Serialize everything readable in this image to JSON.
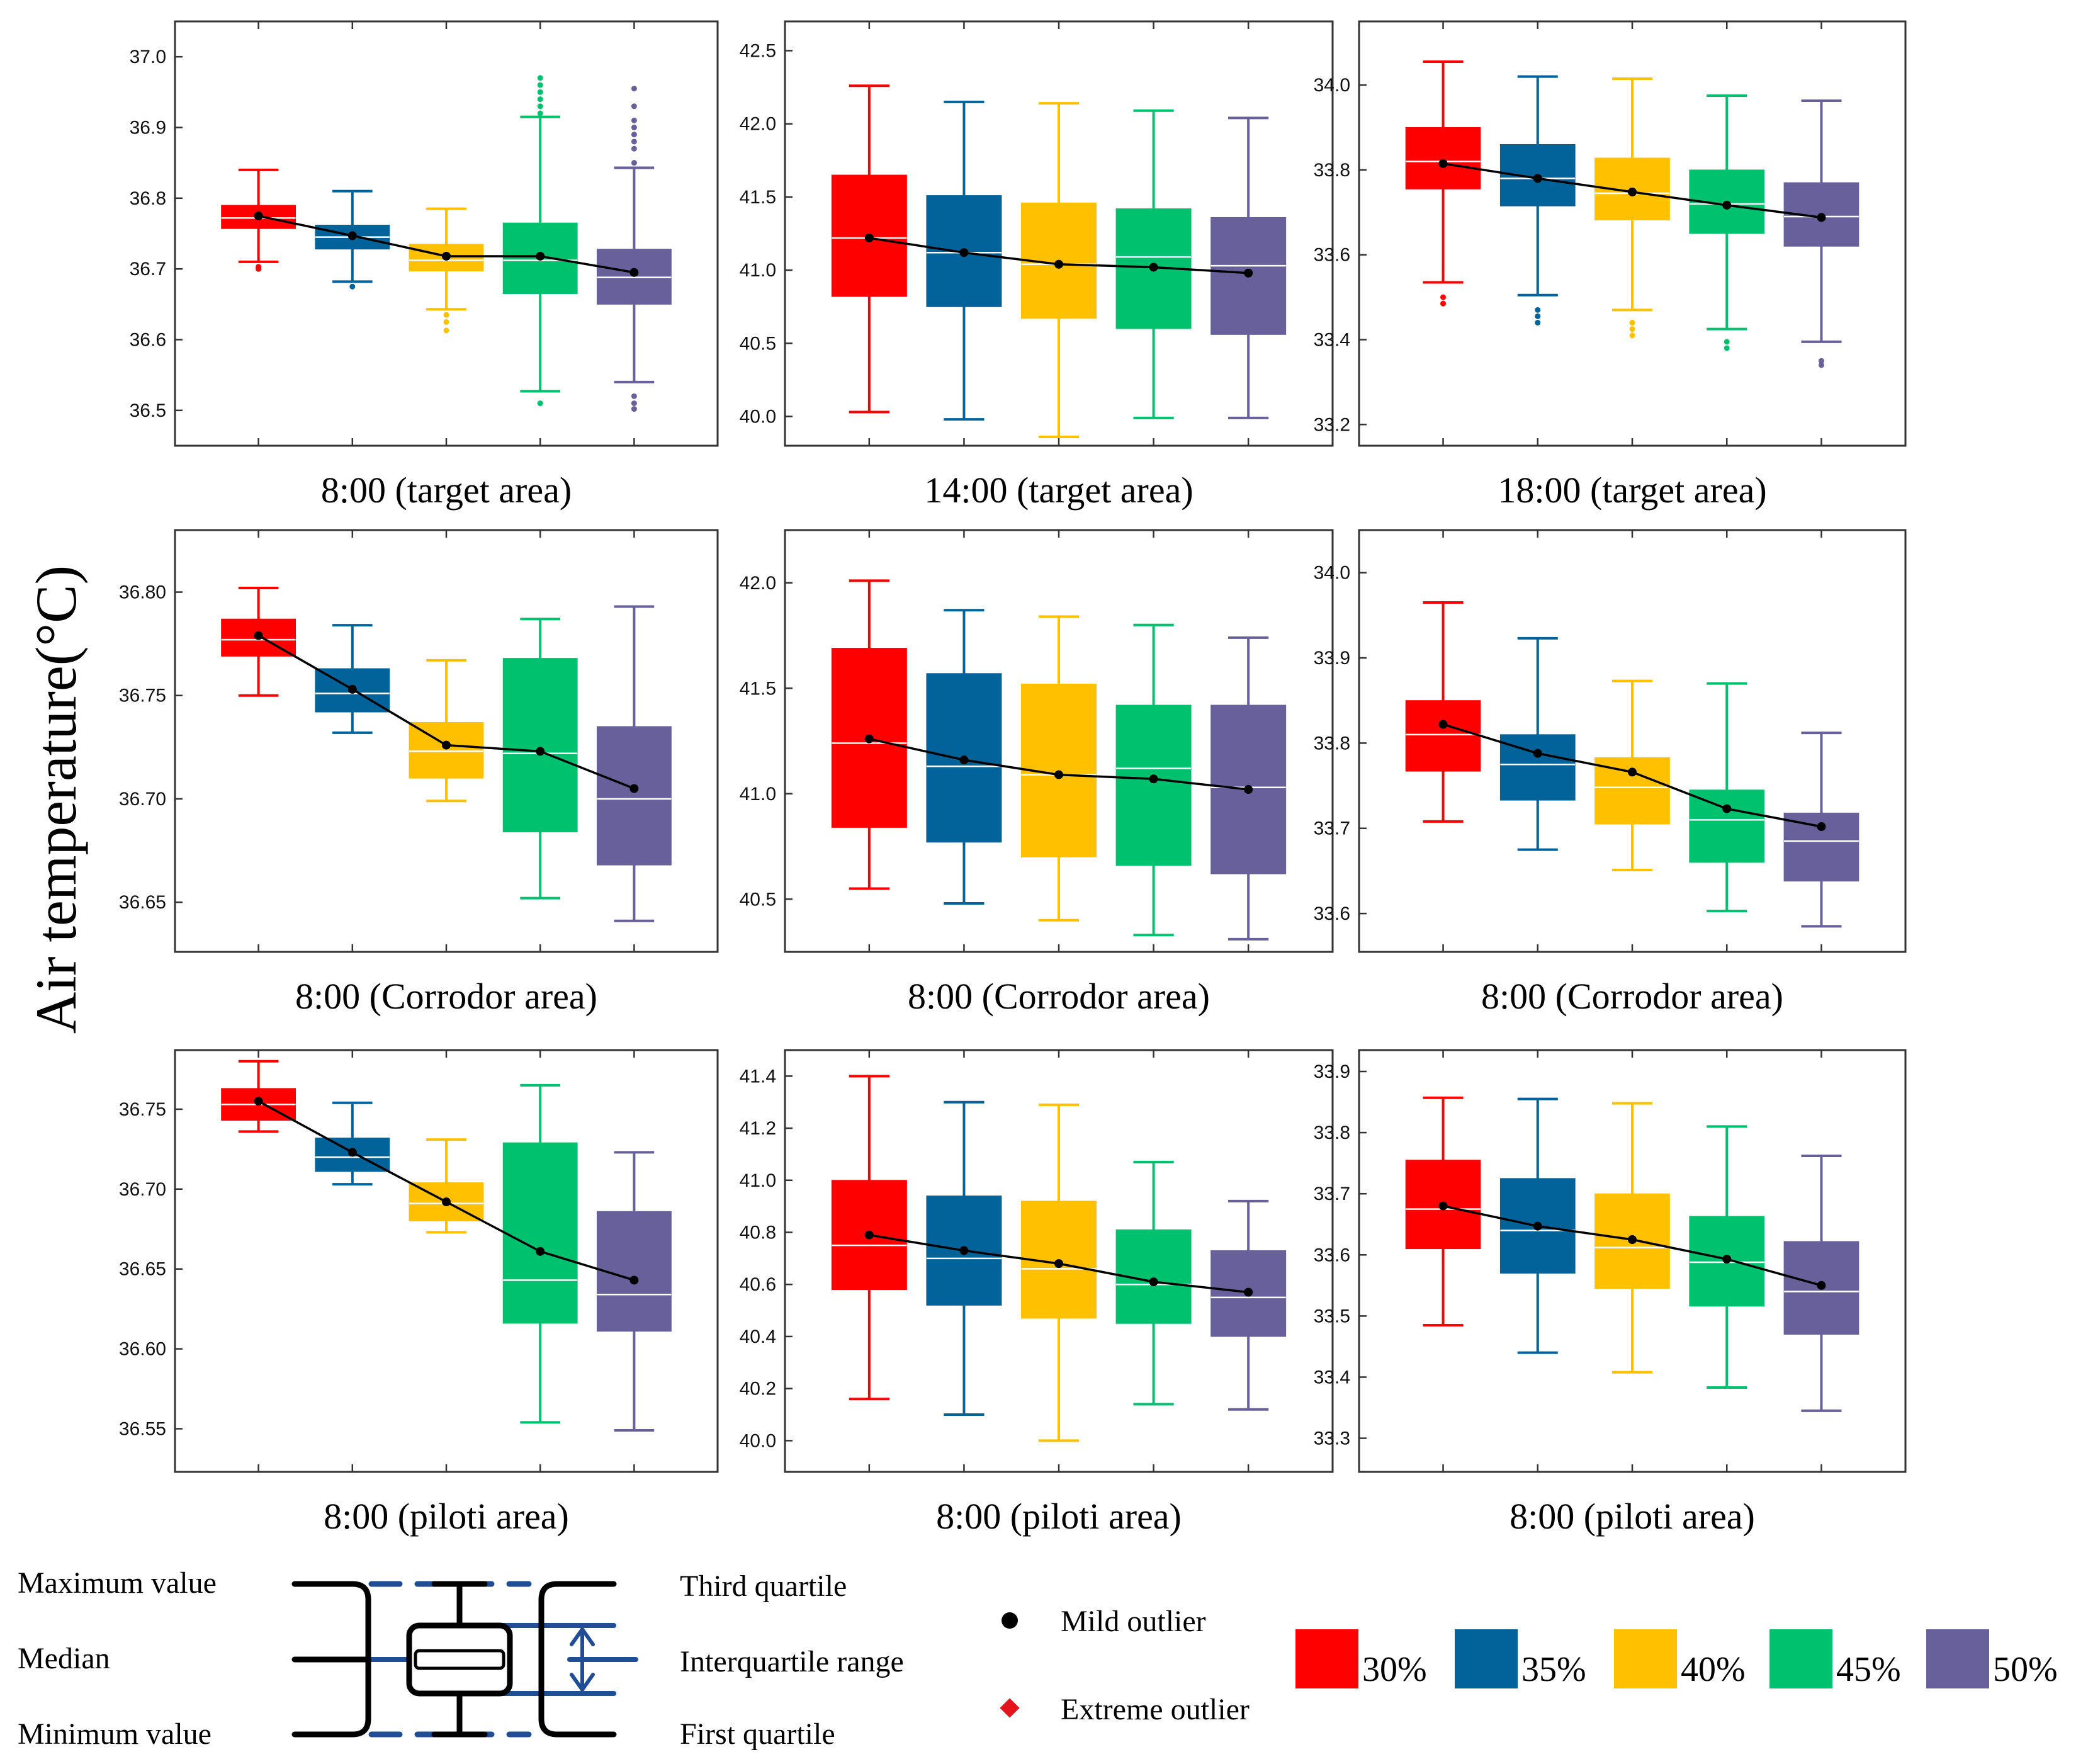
{
  "y_axis_label": "Air temperature(°C)",
  "colors": {
    "30%": "#ff0000",
    "35%": "#02629a",
    "40%": "#ffc000",
    "45%": "#00c16e",
    "50%": "#67609a"
  },
  "chart_data": [
    {
      "type": "box",
      "title": "8:00 (target area)",
      "ylim": [
        36.45,
        37.05
      ],
      "ticks": [
        "36.5",
        "36.6",
        "36.7",
        "36.8",
        "36.9",
        "37.0"
      ],
      "categories": [
        "30%",
        "35%",
        "40%",
        "45%",
        "50%"
      ],
      "boxes": [
        {
          "min": 36.71,
          "q1": 36.757,
          "median": 36.772,
          "q3": 36.79,
          "max": 36.84,
          "mean": 36.775,
          "outliers": [
            36.7,
            36.703
          ]
        },
        {
          "min": 36.682,
          "q1": 36.728,
          "median": 36.745,
          "q3": 36.762,
          "max": 36.81,
          "mean": 36.747,
          "outliers": [
            36.675
          ]
        },
        {
          "min": 36.643,
          "q1": 36.697,
          "median": 36.712,
          "q3": 36.735,
          "max": 36.785,
          "mean": 36.718,
          "outliers": [
            36.635,
            36.625,
            36.613
          ]
        },
        {
          "min": 36.527,
          "q1": 36.665,
          "median": 36.712,
          "q3": 36.765,
          "max": 36.915,
          "mean": 36.718,
          "outliers": [
            36.51,
            36.92,
            36.93,
            36.94,
            36.95,
            36.96,
            36.97
          ]
        },
        {
          "min": 36.54,
          "q1": 36.65,
          "median": 36.688,
          "q3": 36.728,
          "max": 36.843,
          "mean": 36.695,
          "outliers": [
            36.502,
            36.51,
            36.52,
            36.85,
            36.87,
            36.88,
            36.89,
            36.9,
            36.91,
            36.93,
            36.955
          ]
        }
      ]
    },
    {
      "type": "box",
      "title": "14:00 (target area)",
      "ylim": [
        39.8,
        42.7
      ],
      "ticks": [
        "40.0",
        "40.5",
        "41.0",
        "41.5",
        "42.0",
        "42.5"
      ],
      "categories": [
        "30%",
        "35%",
        "40%",
        "45%",
        "50%"
      ],
      "boxes": [
        {
          "min": 40.03,
          "q1": 40.82,
          "median": 41.22,
          "q3": 41.65,
          "max": 42.26,
          "mean": 41.22,
          "outliers": []
        },
        {
          "min": 39.98,
          "q1": 40.75,
          "median": 41.12,
          "q3": 41.51,
          "max": 42.15,
          "mean": 41.12,
          "outliers": []
        },
        {
          "min": 39.86,
          "q1": 40.67,
          "median": 41.04,
          "q3": 41.46,
          "max": 42.14,
          "mean": 41.04,
          "outliers": []
        },
        {
          "min": 39.99,
          "q1": 40.6,
          "median": 41.09,
          "q3": 41.42,
          "max": 42.09,
          "mean": 41.02,
          "outliers": []
        },
        {
          "min": 39.99,
          "q1": 40.56,
          "median": 41.03,
          "q3": 41.36,
          "max": 42.04,
          "mean": 40.98,
          "outliers": []
        }
      ]
    },
    {
      "type": "box",
      "title": "18:00 (target area)",
      "ylim": [
        33.15,
        34.15
      ],
      "ticks": [
        "33.2",
        "33.4",
        "33.6",
        "33.8",
        "34.0"
      ],
      "categories": [
        "30%",
        "35%",
        "40%",
        "45%",
        "50%"
      ],
      "boxes": [
        {
          "min": 33.535,
          "q1": 33.755,
          "median": 33.82,
          "q3": 33.9,
          "max": 34.055,
          "mean": 33.815,
          "outliers": [
            33.5,
            33.485
          ]
        },
        {
          "min": 33.505,
          "q1": 33.715,
          "median": 33.78,
          "q3": 33.86,
          "max": 34.02,
          "mean": 33.78,
          "outliers": [
            33.47,
            33.455,
            33.44
          ]
        },
        {
          "min": 33.47,
          "q1": 33.682,
          "median": 33.745,
          "q3": 33.828,
          "max": 34.015,
          "mean": 33.748,
          "outliers": [
            33.44,
            33.425,
            33.41
          ]
        },
        {
          "min": 33.425,
          "q1": 33.65,
          "median": 33.72,
          "q3": 33.8,
          "max": 33.975,
          "mean": 33.717,
          "outliers": [
            33.395,
            33.38
          ]
        },
        {
          "min": 33.395,
          "q1": 33.62,
          "median": 33.69,
          "q3": 33.77,
          "max": 33.963,
          "mean": 33.688,
          "outliers": [
            33.35,
            33.34
          ]
        }
      ]
    },
    {
      "type": "box",
      "title": "8:00 (Corrodor area)",
      "ylim": [
        36.626,
        36.83
      ],
      "ticks": [
        "36.65",
        "36.70",
        "36.75",
        "36.80"
      ],
      "categories": [
        "30%",
        "35%",
        "40%",
        "45%",
        "50%"
      ],
      "boxes": [
        {
          "min": 36.75,
          "q1": 36.769,
          "median": 36.777,
          "q3": 36.787,
          "max": 36.802,
          "mean": 36.779,
          "outliers": []
        },
        {
          "min": 36.732,
          "q1": 36.742,
          "median": 36.751,
          "q3": 36.763,
          "max": 36.784,
          "mean": 36.753,
          "outliers": []
        },
        {
          "min": 36.699,
          "q1": 36.71,
          "median": 36.723,
          "q3": 36.737,
          "max": 36.767,
          "mean": 36.726,
          "outliers": []
        },
        {
          "min": 36.652,
          "q1": 36.684,
          "median": 36.722,
          "q3": 36.768,
          "max": 36.787,
          "mean": 36.723,
          "outliers": []
        },
        {
          "min": 36.641,
          "q1": 36.668,
          "median": 36.7,
          "q3": 36.735,
          "max": 36.793,
          "mean": 36.705,
          "outliers": []
        }
      ]
    },
    {
      "type": "box",
      "title": "8:00 (Corrodor area)",
      "ylim": [
        40.25,
        42.25
      ],
      "ticks": [
        "40.5",
        "41.0",
        "41.5",
        "42.0"
      ],
      "categories": [
        "30%",
        "35%",
        "40%",
        "45%",
        "50%"
      ],
      "boxes": [
        {
          "min": 40.55,
          "q1": 40.84,
          "median": 41.24,
          "q3": 41.69,
          "max": 42.01,
          "mean": 41.26,
          "outliers": []
        },
        {
          "min": 40.48,
          "q1": 40.77,
          "median": 41.13,
          "q3": 41.57,
          "max": 41.87,
          "mean": 41.16,
          "outliers": []
        },
        {
          "min": 40.4,
          "q1": 40.7,
          "median": 41.09,
          "q3": 41.52,
          "max": 41.84,
          "mean": 41.09,
          "outliers": []
        },
        {
          "min": 40.33,
          "q1": 40.66,
          "median": 41.12,
          "q3": 41.42,
          "max": 41.8,
          "mean": 41.07,
          "outliers": []
        },
        {
          "min": 40.31,
          "q1": 40.62,
          "median": 41.03,
          "q3": 41.42,
          "max": 41.74,
          "mean": 41.02,
          "outliers": []
        }
      ]
    },
    {
      "type": "box",
      "title": "8:00 (Corrodor area)",
      "ylim": [
        33.555,
        34.05
      ],
      "ticks": [
        "33.6",
        "33.7",
        "33.8",
        "33.9",
        "34.0"
      ],
      "categories": [
        "30%",
        "35%",
        "40%",
        "45%",
        "50%"
      ],
      "boxes": [
        {
          "min": 33.708,
          "q1": 33.767,
          "median": 33.81,
          "q3": 33.85,
          "max": 33.965,
          "mean": 33.822,
          "outliers": []
        },
        {
          "min": 33.675,
          "q1": 33.733,
          "median": 33.775,
          "q3": 33.81,
          "max": 33.923,
          "mean": 33.788,
          "outliers": []
        },
        {
          "min": 33.651,
          "q1": 33.705,
          "median": 33.748,
          "q3": 33.783,
          "max": 33.873,
          "mean": 33.766,
          "outliers": []
        },
        {
          "min": 33.603,
          "q1": 33.66,
          "median": 33.71,
          "q3": 33.745,
          "max": 33.87,
          "mean": 33.723,
          "outliers": []
        },
        {
          "min": 33.585,
          "q1": 33.638,
          "median": 33.685,
          "q3": 33.718,
          "max": 33.812,
          "mean": 33.702,
          "outliers": []
        }
      ]
    },
    {
      "type": "box",
      "title": "8:00 (piloti area)",
      "ylim": [
        36.523,
        36.787
      ],
      "ticks": [
        "36.55",
        "36.60",
        "36.65",
        "36.70",
        "36.75"
      ],
      "categories": [
        "30%",
        "35%",
        "40%",
        "45%",
        "50%"
      ],
      "boxes": [
        {
          "min": 36.736,
          "q1": 36.743,
          "median": 36.753,
          "q3": 36.763,
          "max": 36.78,
          "mean": 36.755,
          "outliers": []
        },
        {
          "min": 36.703,
          "q1": 36.711,
          "median": 36.72,
          "q3": 36.732,
          "max": 36.754,
          "mean": 36.723,
          "outliers": []
        },
        {
          "min": 36.673,
          "q1": 36.68,
          "median": 36.691,
          "q3": 36.704,
          "max": 36.731,
          "mean": 36.692,
          "outliers": []
        },
        {
          "min": 36.554,
          "q1": 36.616,
          "median": 36.643,
          "q3": 36.729,
          "max": 36.765,
          "mean": 36.661,
          "outliers": []
        },
        {
          "min": 36.549,
          "q1": 36.611,
          "median": 36.634,
          "q3": 36.686,
          "max": 36.723,
          "mean": 36.643,
          "outliers": []
        }
      ]
    },
    {
      "type": "box",
      "title": "8:00 (piloti area)",
      "ylim": [
        39.88,
        41.5
      ],
      "ticks": [
        "40.0",
        "40.2",
        "40.4",
        "40.6",
        "40.8",
        "41.0",
        "41.2",
        "41.4"
      ],
      "categories": [
        "30%",
        "35%",
        "40%",
        "45%",
        "50%"
      ],
      "boxes": [
        {
          "min": 40.16,
          "q1": 40.58,
          "median": 40.75,
          "q3": 41.0,
          "max": 41.4,
          "mean": 40.79,
          "outliers": []
        },
        {
          "min": 40.1,
          "q1": 40.52,
          "median": 40.7,
          "q3": 40.94,
          "max": 41.3,
          "mean": 40.73,
          "outliers": []
        },
        {
          "min": 40.0,
          "q1": 40.47,
          "median": 40.66,
          "q3": 40.92,
          "max": 41.29,
          "mean": 40.68,
          "outliers": []
        },
        {
          "min": 40.14,
          "q1": 40.45,
          "median": 40.6,
          "q3": 40.81,
          "max": 41.07,
          "mean": 40.61,
          "outliers": []
        },
        {
          "min": 40.12,
          "q1": 40.4,
          "median": 40.55,
          "q3": 40.73,
          "max": 40.92,
          "mean": 40.57,
          "outliers": []
        }
      ]
    },
    {
      "type": "box",
      "title": "8:00 (piloti area)",
      "ylim": [
        33.245,
        33.935
      ],
      "ticks": [
        "33.3",
        "33.4",
        "33.5",
        "33.6",
        "33.7",
        "33.8",
        "33.9"
      ],
      "categories": [
        "30%",
        "35%",
        "40%",
        "45%",
        "50%"
      ],
      "boxes": [
        {
          "min": 33.485,
          "q1": 33.61,
          "median": 33.675,
          "q3": 33.755,
          "max": 33.857,
          "mean": 33.68,
          "outliers": []
        },
        {
          "min": 33.44,
          "q1": 33.57,
          "median": 33.64,
          "q3": 33.725,
          "max": 33.855,
          "mean": 33.647,
          "outliers": []
        },
        {
          "min": 33.408,
          "q1": 33.545,
          "median": 33.612,
          "q3": 33.7,
          "max": 33.848,
          "mean": 33.625,
          "outliers": []
        },
        {
          "min": 33.383,
          "q1": 33.516,
          "median": 33.588,
          "q3": 33.663,
          "max": 33.81,
          "mean": 33.593,
          "outliers": []
        },
        {
          "min": 33.345,
          "q1": 33.47,
          "median": 33.54,
          "q3": 33.622,
          "max": 33.762,
          "mean": 33.55,
          "outliers": []
        }
      ]
    }
  ],
  "legend": {
    "box_labels": {
      "max": "Maximum value",
      "median": "Median",
      "min": "Minimum value",
      "q3": "Third quartile",
      "iqr": "Interquartile range",
      "q1": "First quartile"
    },
    "mild_outlier": "Mild outlier",
    "extreme_outlier": "Extreme outlier",
    "swatches": [
      "30%",
      "35%",
      "40%",
      "45%",
      "50%"
    ]
  }
}
